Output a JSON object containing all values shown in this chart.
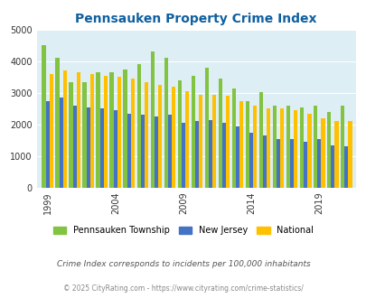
{
  "title": "Pennsauken Property Crime Index",
  "subtitle": "Crime Index corresponds to incidents per 100,000 inhabitants",
  "footer": "© 2025 CityRating.com - https://www.cityrating.com/crime-statistics/",
  "years": [
    1999,
    2000,
    2001,
    2002,
    2003,
    2004,
    2005,
    2006,
    2007,
    2008,
    2009,
    2010,
    2011,
    2012,
    2013,
    2014,
    2015,
    2016,
    2017,
    2018,
    2019,
    2020,
    2021
  ],
  "pennsauken": [
    4500,
    4100,
    3350,
    3350,
    3650,
    3650,
    3750,
    3900,
    4300,
    4100,
    3400,
    3550,
    3800,
    3450,
    3150,
    2750,
    3020,
    2600,
    2600,
    2550,
    2600,
    2400,
    2600
  ],
  "new_jersey": [
    2750,
    2850,
    2600,
    2550,
    2500,
    2450,
    2350,
    2300,
    2250,
    2300,
    2050,
    2100,
    2150,
    2050,
    1950,
    1750,
    1650,
    1550,
    1550,
    1450,
    1550,
    1350,
    1300
  ],
  "national": [
    3600,
    3700,
    3650,
    3600,
    3550,
    3500,
    3450,
    3350,
    3250,
    3200,
    3050,
    2950,
    2950,
    2900,
    2750,
    2600,
    2500,
    2500,
    2450,
    2350,
    2200,
    2100,
    2100
  ],
  "pennsauken_color": "#82c341",
  "new_jersey_color": "#4472c4",
  "national_color": "#ffc000",
  "title_color": "#1060a0",
  "ylim": [
    0,
    5000
  ],
  "yticks": [
    0,
    1000,
    2000,
    3000,
    4000,
    5000
  ],
  "xtick_years": [
    1999,
    2004,
    2009,
    2014,
    2019
  ],
  "bar_width": 0.28,
  "legend_labels": [
    "Pennsauken Township",
    "New Jersey",
    "National"
  ],
  "subtitle_color": "#555555",
  "footer_color": "#888888",
  "grid_color": "#ffffff",
  "axis_bg": "#ddeef4",
  "tick_label_color": "#333333"
}
